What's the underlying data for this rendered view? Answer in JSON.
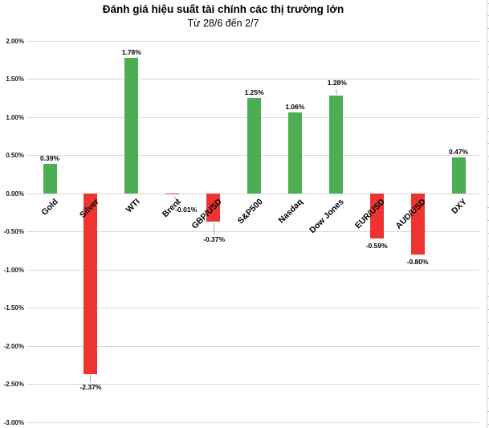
{
  "chart_data": {
    "type": "bar",
    "title": "Đánh giá hiệu suất tài chính các thị trường lớn",
    "subtitle": "Từ 28/6 đến 2/7",
    "xlabel": "",
    "ylabel": "",
    "ylim": [
      -3.0,
      2.0
    ],
    "grid": true,
    "legend": null,
    "yticks": [
      {
        "value": 2.0,
        "label": "2.00%"
      },
      {
        "value": 1.5,
        "label": "1.50%"
      },
      {
        "value": 1.0,
        "label": "1.00%"
      },
      {
        "value": 0.5,
        "label": "0.50%"
      },
      {
        "value": 0.0,
        "label": "0.00%"
      },
      {
        "value": -0.5,
        "label": "-0.50%"
      },
      {
        "value": -1.0,
        "label": "-1.00%"
      },
      {
        "value": -1.5,
        "label": "-1.50%"
      },
      {
        "value": -2.0,
        "label": "-2.00%"
      },
      {
        "value": -2.5,
        "label": "-2.50%"
      },
      {
        "value": -3.0,
        "label": "-3.00%"
      }
    ],
    "categories": [
      "Gold",
      "Silver",
      "WTI",
      "Brent",
      "GBP/USD",
      "S&P500",
      "Nasdaq",
      "Dow Jones",
      "EUR/USD",
      "AUD/USD",
      "DXY"
    ],
    "points": [
      {
        "name": "Gold",
        "value": 0.39,
        "label": "0.39%",
        "label_placement": "above"
      },
      {
        "name": "Silver",
        "value": -2.37,
        "label": "-2.37%",
        "label_placement": "below-leader"
      },
      {
        "name": "WTI",
        "value": 1.78,
        "label": "1.78%",
        "label_placement": "above"
      },
      {
        "name": "Brent",
        "value": -0.01,
        "label": "-0.01%",
        "label_placement": "right-below-leader"
      },
      {
        "name": "GBP/USD",
        "value": -0.37,
        "label": "-0.37%",
        "label_placement": "below-far-leader"
      },
      {
        "name": "S&P500",
        "value": 1.25,
        "label": "1.25%",
        "label_placement": "above"
      },
      {
        "name": "Nasdaq",
        "value": 1.06,
        "label": "1.06%",
        "label_placement": "above"
      },
      {
        "name": "Dow Jones",
        "value": 1.28,
        "label": "1.28%",
        "label_placement": "above-leader"
      },
      {
        "name": "EUR/USD",
        "value": -0.59,
        "label": "-0.59%",
        "label_placement": "below"
      },
      {
        "name": "AUD/USD",
        "value": -0.8,
        "label": "-0.80%",
        "label_placement": "below"
      },
      {
        "name": "DXY",
        "value": 0.47,
        "label": "0.47%",
        "label_placement": "above"
      }
    ],
    "colors": {
      "positive": "#4CAD52",
      "negative": "#EE3431",
      "gridline": "#D9D9D9",
      "leader": "#A6A6A6",
      "minor_tick": "#BFBFBF",
      "text": "#000000"
    }
  }
}
